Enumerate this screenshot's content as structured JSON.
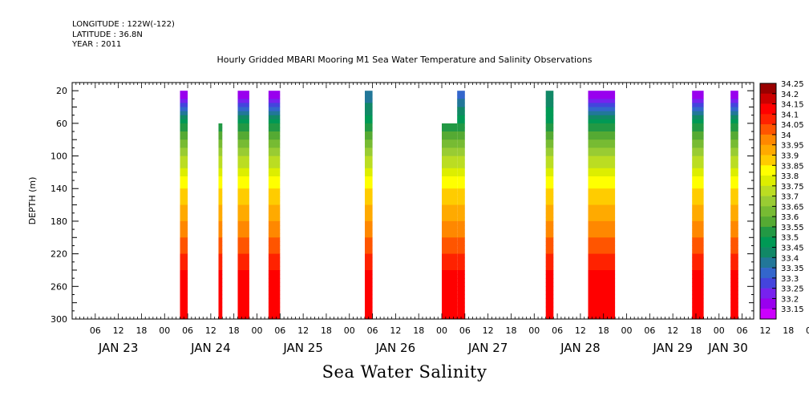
{
  "header": {
    "longitude": "LONGITUDE : 122W(-122)",
    "latitude": "LATITUDE : 36.8N",
    "year": "YEAR : 2011",
    "title": "Hourly Gridded MBARI Mooring M1 Sea Water Temperature and Salinity Observations"
  },
  "footer_title": "Sea Water Salinity",
  "chart_data": {
    "type": "heatmap",
    "title": "Hourly Gridded MBARI Mooring M1 Sea Water Temperature and Salinity Observations",
    "variable": "Sea Water Salinity",
    "ylabel": "DEPTH (m)",
    "y_axis_inverted": true,
    "ylim": [
      300,
      10
    ],
    "yticks": [
      20,
      60,
      100,
      140,
      180,
      220,
      260,
      300
    ],
    "x_range_hours": [
      "2011-01-23 00:00",
      "2011-01-30 09:00"
    ],
    "hour_tick_labels": [
      "06",
      "12",
      "18",
      "00",
      "06",
      "12",
      "18",
      "00",
      "06",
      "12",
      "18",
      "00",
      "06",
      "12",
      "18",
      "00",
      "06",
      "12",
      "18",
      "00",
      "06",
      "12",
      "18",
      "00",
      "06",
      "12",
      "18",
      "00",
      "06",
      "12",
      "18",
      "00",
      "06"
    ],
    "day_labels": [
      "JAN 23",
      "JAN 24",
      "JAN 25",
      "JAN 26",
      "JAN 27",
      "JAN 28",
      "JAN 29",
      "JAN 30"
    ],
    "colorbar_levels": [
      "34.25",
      "34.2",
      "34.15",
      "34.1",
      "34.05",
      "34",
      "33.95",
      "33.9",
      "33.85",
      "33.8",
      "33.75",
      "33.7",
      "33.65",
      "33.6",
      "33.55",
      "33.5",
      "33.45",
      "33.4",
      "33.35",
      "33.3",
      "33.25",
      "33.2",
      "33.15"
    ],
    "colorbar_colors": [
      "#990000",
      "#cc0000",
      "#ff0000",
      "#ff2200",
      "#ff5500",
      "#ff8800",
      "#ffaa00",
      "#ffcc00",
      "#ffff00",
      "#ddee00",
      "#bbdd22",
      "#99cc33",
      "#77bb33",
      "#55aa33",
      "#229944",
      "#009955",
      "#118866",
      "#227799",
      "#3366cc",
      "#4444dd",
      "#7722ee",
      "#9900ee",
      "#cc00ff"
    ],
    "profile_breaks": [
      {
        "depth": 20,
        "salinity": 33.2
      },
      {
        "depth": 60,
        "salinity": 33.55
      },
      {
        "depth": 100,
        "salinity": 33.75
      },
      {
        "depth": 140,
        "salinity": 33.9
      },
      {
        "depth": 180,
        "salinity": 34.0
      },
      {
        "depth": 220,
        "salinity": 34.1
      },
      {
        "depth": 260,
        "salinity": 34.2
      },
      {
        "depth": 300,
        "salinity": 34.15
      }
    ],
    "observation_blocks": [
      {
        "start": "2011-01-24 04:00",
        "end": "2011-01-24 06:00",
        "top_depth": 20,
        "bottom_depth": 300,
        "surface_salinity": 33.2
      },
      {
        "start": "2011-01-24 14:00",
        "end": "2011-01-24 15:00",
        "top_depth": 60,
        "bottom_depth": 300,
        "surface_salinity": 33.85
      },
      {
        "start": "2011-01-24 19:00",
        "end": "2011-01-24 22:00",
        "top_depth": 20,
        "bottom_depth": 300,
        "surface_salinity": 33.2
      },
      {
        "start": "2011-01-25 03:00",
        "end": "2011-01-25 06:00",
        "top_depth": 20,
        "bottom_depth": 300,
        "surface_salinity": 33.2
      },
      {
        "start": "2011-01-26 04:00",
        "end": "2011-01-26 06:00",
        "top_depth": 20,
        "bottom_depth": 300,
        "surface_salinity": 33.4
      },
      {
        "start": "2011-01-27 00:00",
        "end": "2011-01-27 04:00",
        "top_depth": 60,
        "bottom_depth": 300,
        "surface_salinity": 33.55
      },
      {
        "start": "2011-01-27 04:00",
        "end": "2011-01-27 06:00",
        "top_depth": 20,
        "bottom_depth": 300,
        "surface_salinity": 33.35
      },
      {
        "start": "2011-01-28 03:00",
        "end": "2011-01-28 05:00",
        "top_depth": 20,
        "bottom_depth": 300,
        "surface_salinity": 33.45
      },
      {
        "start": "2011-01-28 14:00",
        "end": "2011-01-28 21:00",
        "top_depth": 20,
        "bottom_depth": 300,
        "surface_salinity": 33.2
      },
      {
        "start": "2011-01-29 17:00",
        "end": "2011-01-29 20:00",
        "top_depth": 20,
        "bottom_depth": 300,
        "surface_salinity": 33.2
      },
      {
        "start": "2011-01-30 03:00",
        "end": "2011-01-30 05:00",
        "top_depth": 20,
        "bottom_depth": 300,
        "surface_salinity": 33.2
      }
    ]
  }
}
